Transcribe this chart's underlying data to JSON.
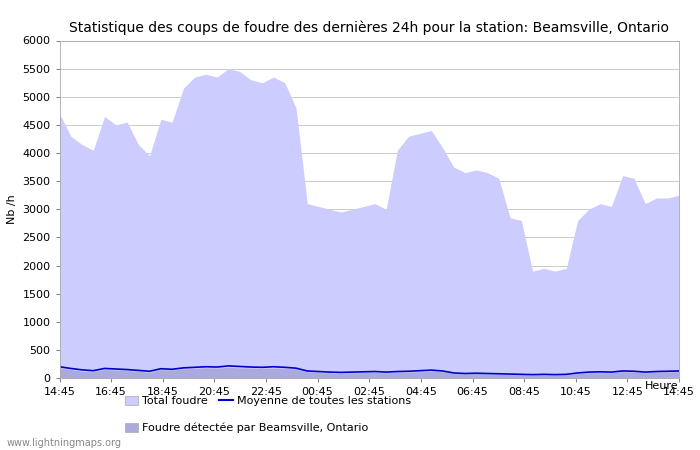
{
  "title": "Statistique des coups de foudre des dernières 24h pour la station: Beamsville, Ontario",
  "ylabel": "Nb /h",
  "xlabel": "Heure",
  "watermark": "www.lightningmaps.org",
  "ylim": [
    0,
    6000
  ],
  "yticks": [
    0,
    500,
    1000,
    1500,
    2000,
    2500,
    3000,
    3500,
    4000,
    4500,
    5000,
    5500,
    6000
  ],
  "xtick_labels": [
    "14:45",
    "16:45",
    "18:45",
    "20:45",
    "22:45",
    "00:45",
    "02:45",
    "04:45",
    "06:45",
    "08:45",
    "10:45",
    "12:45",
    "14:45"
  ],
  "total_foudre_color": "#ccccff",
  "foudre_beamsville_color": "#aaaadd",
  "moyenne_color": "#0000cc",
  "legend_labels": [
    "Total foudre",
    "Foudre détectée par Beamsville, Ontario",
    "Moyenne de toutes les stations"
  ],
  "total_foudre": [
    4700,
    4300,
    4150,
    4050,
    4650,
    4500,
    4550,
    4150,
    3950,
    4600,
    4550,
    5150,
    5350,
    5400,
    5350,
    5500,
    5450,
    5300,
    5250,
    5350,
    5250,
    4800,
    3100,
    3050,
    3000,
    2950,
    3000,
    3050,
    3100,
    3000,
    4050,
    4300,
    4350,
    4400,
    4100,
    3750,
    3650,
    3700,
    3650,
    3550,
    2850,
    2800,
    1900,
    1950,
    1900,
    1950,
    2800,
    3000,
    3100,
    3050,
    3600,
    3550,
    3100,
    3200,
    3200,
    3250
  ],
  "foudre_beamsville": [
    180,
    150,
    120,
    110,
    150,
    140,
    130,
    120,
    100,
    150,
    140,
    160,
    170,
    180,
    175,
    190,
    180,
    175,
    170,
    175,
    170,
    160,
    110,
    100,
    90,
    85,
    90,
    95,
    100,
    90,
    100,
    105,
    110,
    120,
    110,
    80,
    70,
    75,
    70,
    65,
    60,
    55,
    50,
    55,
    50,
    55,
    80,
    90,
    95,
    90,
    110,
    105,
    90,
    100,
    105,
    110
  ],
  "moyenne": [
    200,
    170,
    145,
    130,
    170,
    160,
    150,
    135,
    120,
    165,
    155,
    180,
    190,
    200,
    195,
    215,
    205,
    195,
    190,
    200,
    190,
    175,
    125,
    115,
    105,
    100,
    105,
    110,
    115,
    105,
    115,
    120,
    130,
    140,
    125,
    90,
    80,
    85,
    80,
    75,
    70,
    65,
    60,
    65,
    60,
    65,
    90,
    105,
    110,
    105,
    125,
    120,
    105,
    115,
    120,
    125
  ],
  "background_color": "#ffffff",
  "plot_bg_color": "#ffffff",
  "grid_color": "#cccccc",
  "title_fontsize": 10,
  "tick_fontsize": 8,
  "label_fontsize": 8,
  "legend_fontsize": 8
}
